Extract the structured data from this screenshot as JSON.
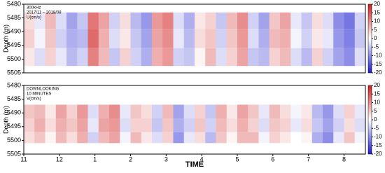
{
  "chart_data": [
    {
      "type": "heatmap",
      "annotations": [
        "300kHz",
        "2017/11 – 2018/08",
        "U(cm/s)"
      ],
      "ylabel": "Depth (m)",
      "xlim": [
        0,
        9.6
      ],
      "ylim": [
        5480,
        5505
      ],
      "yticks": [
        5480,
        5485,
        5490,
        5495,
        5500,
        5505
      ],
      "xbins": [
        0,
        0.3,
        0.6,
        0.9,
        1.2,
        1.5,
        1.8,
        2.1,
        2.4,
        2.7,
        3,
        3.3,
        3.6,
        3.9,
        4.2,
        4.5,
        4.8,
        5.1,
        5.4,
        5.7,
        6,
        6.3,
        6.6,
        6.9,
        7.2,
        7.5,
        7.8,
        8.1,
        8.4,
        8.7,
        9,
        9.3,
        9.6
      ],
      "ybins": [
        5483,
        5489,
        5496,
        5502.5
      ],
      "values": [
        [
          3,
          -2,
          6,
          -3,
          -8,
          -5,
          12,
          8,
          -4,
          3,
          -6,
          -9,
          9,
          11,
          -3,
          -7,
          2,
          4,
          -5,
          6,
          10,
          -4,
          -8,
          5,
          8,
          -2,
          -5,
          3,
          -3,
          -10,
          -12,
          -4
        ],
        [
          4,
          -1,
          5,
          -4,
          -7,
          -6,
          13,
          7,
          -3,
          2,
          -5,
          -8,
          8,
          10,
          -2,
          -6,
          3,
          5,
          -4,
          5,
          9,
          -3,
          -7,
          6,
          7,
          -1,
          -4,
          2,
          -2,
          -9,
          -11,
          -5
        ],
        [
          2,
          -3,
          4,
          -2,
          -6,
          -4,
          11,
          6,
          -5,
          4,
          -4,
          -7,
          7,
          9,
          -4,
          -5,
          1,
          6,
          -3,
          4,
          8,
          -5,
          -6,
          4,
          6,
          -3,
          -6,
          4,
          -4,
          -8,
          -10,
          -3
        ]
      ],
      "clim": [
        -20,
        20
      ],
      "cticks": [
        -20,
        -15,
        -10,
        -5,
        0,
        5,
        10,
        15,
        20
      ],
      "cmap": [
        "#1a1ad0",
        "#ffffff",
        "#d01a1a"
      ]
    },
    {
      "type": "heatmap",
      "annotations": [
        "DOWNLOOKING",
        "10 MINUTES",
        "V(cm/s)"
      ],
      "ylabel": "Depth (m)",
      "xlabel": "TIME",
      "xlim": [
        0,
        9.6
      ],
      "ylim": [
        5480,
        5505
      ],
      "yticks": [
        5480,
        5485,
        5490,
        5495,
        5500,
        5505
      ],
      "xticks": [
        {
          "value": 0,
          "label": "11"
        },
        {
          "value": 1,
          "label": "12"
        },
        {
          "value": 2,
          "label": "1"
        },
        {
          "value": 3,
          "label": "2"
        },
        {
          "value": 4,
          "label": "3"
        },
        {
          "value": 5,
          "label": "4"
        },
        {
          "value": 6,
          "label": "5"
        },
        {
          "value": 7,
          "label": "6"
        },
        {
          "value": 8,
          "label": "7"
        },
        {
          "value": 9,
          "label": "8"
        }
      ],
      "xbins": [
        0,
        0.3,
        0.6,
        0.9,
        1.2,
        1.5,
        1.8,
        2.1,
        2.4,
        2.7,
        3,
        3.3,
        3.6,
        3.9,
        4.2,
        4.5,
        4.8,
        5.1,
        5.4,
        5.7,
        6,
        6.3,
        6.6,
        6.9,
        7.2,
        7.5,
        7.8,
        8.1,
        8.4,
        8.7,
        9,
        9.3,
        9.6
      ],
      "ybins": [
        5487,
        5492,
        5497,
        5501
      ],
      "values": [
        [
          5,
          6,
          2,
          8,
          4,
          9,
          -3,
          7,
          10,
          -2,
          5,
          3,
          -4,
          6,
          -8,
          -3,
          4,
          -5,
          7,
          2,
          8,
          5,
          -2,
          6,
          3,
          -1,
          2,
          -6,
          -9,
          -3,
          4,
          -2
        ],
        [
          4,
          7,
          3,
          7,
          5,
          8,
          -2,
          8,
          9,
          -3,
          4,
          4,
          -5,
          5,
          -7,
          -4,
          5,
          -4,
          6,
          3,
          7,
          4,
          -3,
          5,
          4,
          -2,
          3,
          -5,
          -8,
          -4,
          3,
          -3
        ],
        [
          3,
          5,
          1,
          6,
          3,
          7,
          -4,
          6,
          8,
          -1,
          6,
          2,
          -3,
          4,
          -9,
          -2,
          3,
          -6,
          5,
          1,
          6,
          6,
          -1,
          4,
          2,
          0,
          1,
          -7,
          -10,
          -2,
          5,
          -1
        ]
      ],
      "clim": [
        -20,
        20
      ],
      "cticks": [
        -20,
        -15,
        -10,
        -5,
        0,
        5,
        10,
        15,
        20
      ],
      "cmap": [
        "#1a1ad0",
        "#ffffff",
        "#d01a1a"
      ]
    }
  ]
}
